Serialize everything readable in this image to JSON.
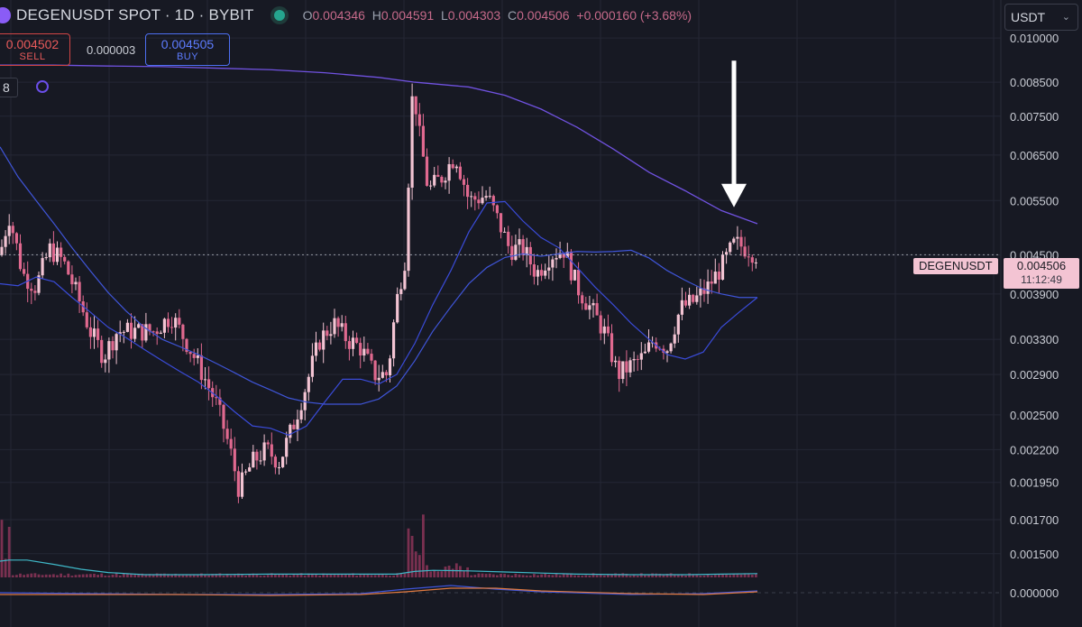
{
  "header": {
    "symbol_title": "DEGENUSDT SPOT · 1D · BYBIT",
    "ohlc": {
      "o_label": "O",
      "o": "0.004346",
      "h_label": "H",
      "h": "0.004591",
      "l_label": "L",
      "l": "0.004303",
      "c_label": "C",
      "c": "0.004506",
      "change": "+0.000160 (+3.68%)"
    },
    "status_color": "#25a58e"
  },
  "trade": {
    "sell_price": "0.004502",
    "sell_label": "SELL",
    "spread": "0.000003",
    "buy_price": "0.004505",
    "buy_label": "BUY"
  },
  "indicator_badge": "8",
  "currency_select": {
    "value": "USDT",
    "icon": "chevron-down-icon"
  },
  "price_tag": {
    "symbol": "DEGENUSDT",
    "price": "0.004506",
    "countdown": "11:12:49"
  },
  "colors": {
    "background": "#171923",
    "grid": "#242734",
    "candle": "#e0698f",
    "candle_light": "#f3c4d3",
    "ma_fast": "#3a4bd8",
    "ma_mid": "#3f55d8",
    "ma_slow": "#7052e0",
    "volume": "#7a3050",
    "volume_ma": "#3fb8c8",
    "arrow": "#ffffff"
  },
  "chart_data": {
    "type": "candlestick",
    "y_scale": "log",
    "ylim": [
      0.00133,
      0.0115
    ],
    "y_ticks": [
      "0.010000",
      "0.008500",
      "0.007500",
      "0.006500",
      "0.005500",
      "0.004500",
      "0.003900",
      "0.003300",
      "0.002900",
      "0.002500",
      "0.002200",
      "0.001950",
      "0.001700",
      "0.001500"
    ],
    "oscillator_tick": "0.000000",
    "current_price": 0.004506,
    "ma_fast": [
      [
        0,
        0.00405
      ],
      [
        20,
        0.00402
      ],
      [
        40,
        0.00415
      ],
      [
        60,
        0.00408
      ],
      [
        80,
        0.00385
      ],
      [
        100,
        0.00365
      ],
      [
        120,
        0.00345
      ],
      [
        140,
        0.00332
      ],
      [
        160,
        0.00318
      ],
      [
        180,
        0.00305
      ],
      [
        200,
        0.00293
      ],
      [
        220,
        0.00282
      ],
      [
        240,
        0.00268
      ],
      [
        260,
        0.00253
      ],
      [
        280,
        0.0024
      ],
      [
        300,
        0.00238
      ],
      [
        320,
        0.00232
      ],
      [
        340,
        0.0024
      ],
      [
        360,
        0.00262
      ],
      [
        380,
        0.00285
      ],
      [
        400,
        0.00285
      ],
      [
        420,
        0.0028
      ],
      [
        440,
        0.0029
      ],
      [
        460,
        0.00325
      ],
      [
        480,
        0.00375
      ],
      [
        500,
        0.00425
      ],
      [
        520,
        0.0049
      ],
      [
        540,
        0.00545
      ],
      [
        560,
        0.00548
      ],
      [
        580,
        0.0051
      ],
      [
        600,
        0.0048
      ],
      [
        620,
        0.00462
      ],
      [
        640,
        0.0043
      ],
      [
        660,
        0.004
      ],
      [
        680,
        0.00375
      ],
      [
        700,
        0.0035
      ],
      [
        720,
        0.0033
      ],
      [
        740,
        0.00312
      ],
      [
        760,
        0.00307
      ],
      [
        780,
        0.00315
      ],
      [
        800,
        0.00345
      ],
      [
        820,
        0.00365
      ],
      [
        840,
        0.00385
      ]
    ],
    "ma_mid": [
      [
        0,
        0.0067
      ],
      [
        20,
        0.006
      ],
      [
        40,
        0.0055
      ],
      [
        60,
        0.00505
      ],
      [
        80,
        0.00462
      ],
      [
        100,
        0.00425
      ],
      [
        120,
        0.00392
      ],
      [
        140,
        0.00366
      ],
      [
        160,
        0.00345
      ],
      [
        180,
        0.0033
      ],
      [
        200,
        0.00321
      ],
      [
        220,
        0.00312
      ],
      [
        240,
        0.00302
      ],
      [
        260,
        0.00292
      ],
      [
        280,
        0.00282
      ],
      [
        300,
        0.00274
      ],
      [
        320,
        0.00266
      ],
      [
        340,
        0.00262
      ],
      [
        360,
        0.0026
      ],
      [
        380,
        0.0026
      ],
      [
        400,
        0.0026
      ],
      [
        420,
        0.00265
      ],
      [
        440,
        0.00278
      ],
      [
        460,
        0.00305
      ],
      [
        480,
        0.0034
      ],
      [
        500,
        0.00372
      ],
      [
        520,
        0.00405
      ],
      [
        540,
        0.0043
      ],
      [
        560,
        0.00446
      ],
      [
        580,
        0.00452
      ],
      [
        600,
        0.00448
      ],
      [
        620,
        0.00452
      ],
      [
        640,
        0.00456
      ],
      [
        660,
        0.00455
      ],
      [
        680,
        0.00456
      ],
      [
        700,
        0.00458
      ],
      [
        720,
        0.00445
      ],
      [
        740,
        0.00425
      ],
      [
        760,
        0.0041
      ],
      [
        780,
        0.00397
      ],
      [
        800,
        0.0039
      ],
      [
        820,
        0.00385
      ],
      [
        840,
        0.00385
      ]
    ],
    "ma_slow": [
      [
        0,
        0.00905
      ],
      [
        60,
        0.00905
      ],
      [
        120,
        0.00902
      ],
      [
        180,
        0.009
      ],
      [
        240,
        0.00895
      ],
      [
        300,
        0.0089
      ],
      [
        360,
        0.0088
      ],
      [
        420,
        0.00865
      ],
      [
        460,
        0.0085
      ],
      [
        520,
        0.00835
      ],
      [
        560,
        0.0081
      ],
      [
        600,
        0.0077
      ],
      [
        640,
        0.0072
      ],
      [
        680,
        0.00665
      ],
      [
        720,
        0.0061
      ],
      [
        760,
        0.0057
      ],
      [
        800,
        0.0053
      ],
      [
        840,
        0.00505
      ]
    ],
    "volume_ma": [
      [
        0,
        0.3
      ],
      [
        10,
        0.32
      ],
      [
        30,
        0.32
      ],
      [
        60,
        0.24
      ],
      [
        90,
        0.15
      ],
      [
        120,
        0.09
      ],
      [
        160,
        0.05
      ],
      [
        220,
        0.05
      ],
      [
        300,
        0.06
      ],
      [
        380,
        0.06
      ],
      [
        440,
        0.06
      ],
      [
        460,
        0.11
      ],
      [
        480,
        0.13
      ],
      [
        520,
        0.12
      ],
      [
        560,
        0.1
      ],
      [
        600,
        0.08
      ],
      [
        640,
        0.06
      ],
      [
        700,
        0.05
      ],
      [
        760,
        0.05
      ],
      [
        800,
        0.06
      ],
      [
        840,
        0.07
      ]
    ],
    "arrow_price_from": 0.0092,
    "arrow_price_to": 0.0054
  }
}
